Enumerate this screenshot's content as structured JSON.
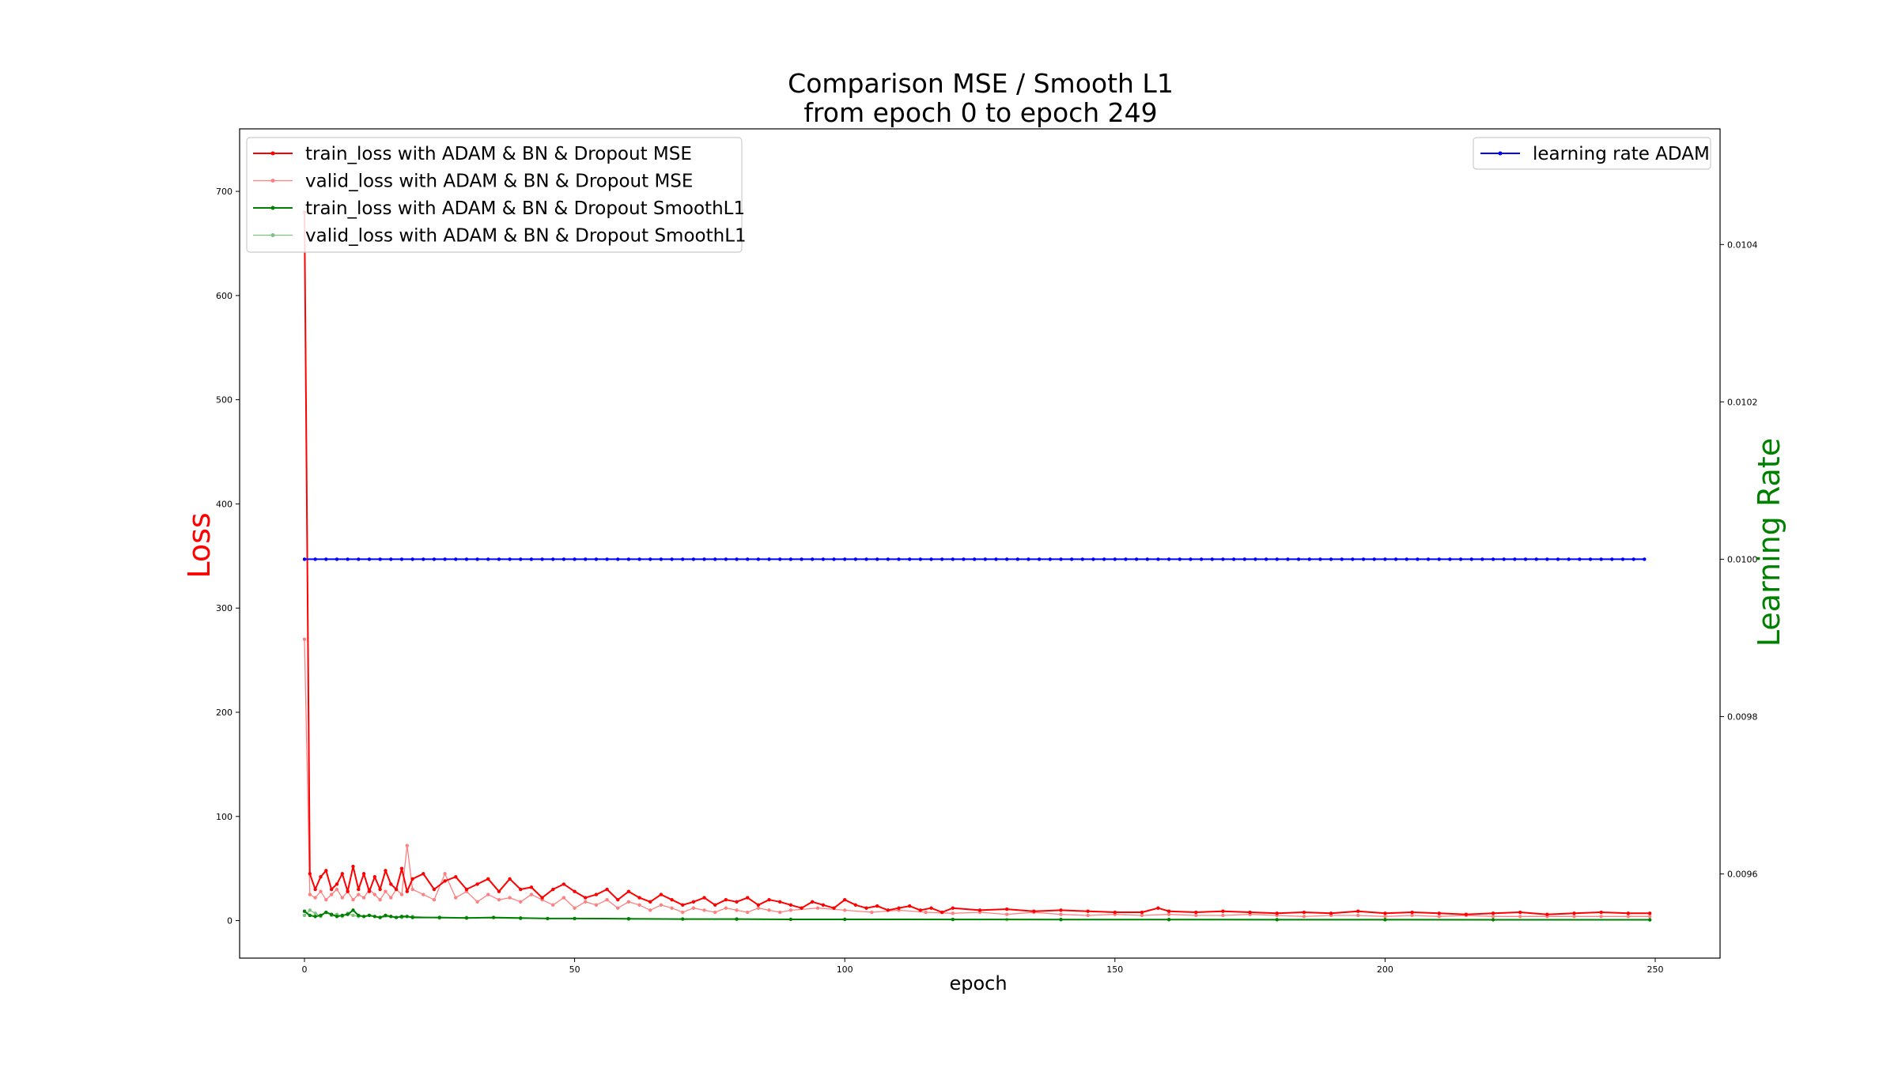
{
  "chart_data": {
    "type": "line",
    "title": "Comparison MSE / Smooth L1",
    "subtitle": "from epoch 0 to epoch 249",
    "xlabel": "epoch",
    "ylabel_left": "Loss",
    "ylabel_right": "Learning Rate",
    "colors": {
      "train_mse": "#ff0000",
      "valid_mse": "#ff8080",
      "train_sl1": "#008000",
      "valid_sl1": "#80c080",
      "lr": "#0000ff",
      "ylabel_left": "#ff0000",
      "ylabel_right": "#008000"
    },
    "xlim": [
      -12,
      262
    ],
    "ylim_left": [
      -36,
      760
    ],
    "ylim_right": [
      0.009493,
      0.010547
    ],
    "x_ticks": [
      "0",
      "50",
      "100",
      "150",
      "200",
      "250"
    ],
    "y_ticks_left": [
      "0",
      "100",
      "200",
      "300",
      "400",
      "500",
      "600",
      "700"
    ],
    "y_ticks_right": [
      "0.0096",
      "0.0098",
      "0.0100",
      "0.0102",
      "0.0104"
    ],
    "grid": false,
    "legend_left_position": "upper-left",
    "legend_right_position": "upper-right",
    "legend_left": [
      "train_loss with ADAM & BN & Dropout MSE",
      "valid_loss with ADAM & BN & Dropout MSE",
      "train_loss with ADAM & BN & Dropout SmoothL1",
      "valid_loss with ADAM & BN & Dropout SmoothL1"
    ],
    "legend_right": [
      "learning rate ADAM"
    ],
    "series": [
      {
        "name": "train_loss with ADAM & BN & Dropout MSE",
        "axis": "left",
        "color_key": "train_mse",
        "x": [
          0,
          1,
          2,
          3,
          4,
          5,
          6,
          7,
          8,
          9,
          10,
          11,
          12,
          13,
          14,
          15,
          16,
          17,
          18,
          19,
          20,
          22,
          24,
          26,
          28,
          30,
          32,
          34,
          36,
          38,
          40,
          42,
          44,
          46,
          48,
          50,
          52,
          54,
          56,
          58,
          60,
          62,
          64,
          66,
          68,
          70,
          72,
          74,
          76,
          78,
          80,
          82,
          84,
          86,
          88,
          90,
          92,
          94,
          96,
          98,
          100,
          102,
          104,
          106,
          108,
          110,
          112,
          114,
          116,
          118,
          120,
          125,
          130,
          135,
          140,
          145,
          150,
          155,
          158,
          160,
          165,
          170,
          175,
          180,
          185,
          190,
          195,
          200,
          205,
          210,
          215,
          220,
          225,
          230,
          235,
          240,
          245,
          249
        ],
        "values": [
          680,
          45,
          30,
          42,
          48,
          30,
          35,
          45,
          28,
          52,
          30,
          45,
          28,
          42,
          30,
          48,
          35,
          30,
          50,
          28,
          40,
          45,
          30,
          38,
          42,
          30,
          35,
          40,
          28,
          40,
          30,
          32,
          22,
          30,
          35,
          28,
          22,
          25,
          30,
          20,
          28,
          22,
          18,
          25,
          20,
          15,
          18,
          22,
          15,
          20,
          18,
          22,
          15,
          20,
          18,
          15,
          12,
          18,
          15,
          12,
          20,
          15,
          12,
          14,
          10,
          12,
          14,
          10,
          12,
          8,
          12,
          10,
          11,
          9,
          10,
          9,
          8,
          8,
          12,
          9,
          8,
          9,
          8,
          7,
          8,
          7,
          9,
          7,
          8,
          7,
          6,
          7,
          8,
          6,
          7,
          8,
          7,
          7
        ]
      },
      {
        "name": "valid_loss with ADAM & BN & Dropout MSE",
        "axis": "left",
        "color_key": "valid_mse",
        "x": [
          0,
          1,
          2,
          3,
          4,
          5,
          6,
          7,
          8,
          9,
          10,
          11,
          12,
          13,
          14,
          15,
          16,
          17,
          18,
          19,
          20,
          22,
          24,
          26,
          28,
          30,
          32,
          34,
          36,
          38,
          40,
          42,
          44,
          46,
          48,
          50,
          52,
          54,
          56,
          58,
          60,
          62,
          64,
          66,
          68,
          70,
          72,
          74,
          76,
          78,
          80,
          82,
          84,
          86,
          88,
          90,
          95,
          100,
          105,
          110,
          115,
          120,
          125,
          130,
          135,
          140,
          145,
          150,
          155,
          160,
          165,
          170,
          175,
          180,
          185,
          190,
          195,
          200,
          205,
          210,
          215,
          220,
          225,
          230,
          235,
          240,
          245,
          249
        ],
        "values": [
          270,
          25,
          22,
          28,
          20,
          25,
          30,
          22,
          28,
          20,
          25,
          22,
          30,
          25,
          20,
          28,
          22,
          30,
          25,
          72,
          30,
          25,
          20,
          45,
          22,
          28,
          18,
          25,
          20,
          22,
          18,
          25,
          20,
          15,
          22,
          12,
          18,
          15,
          20,
          12,
          18,
          15,
          10,
          15,
          12,
          8,
          12,
          10,
          8,
          12,
          10,
          8,
          12,
          10,
          8,
          10,
          12,
          10,
          8,
          10,
          8,
          7,
          8,
          6,
          8,
          6,
          5,
          6,
          5,
          6,
          5,
          5,
          6,
          5,
          4,
          5,
          5,
          4,
          5,
          4,
          5,
          4,
          4,
          4,
          4,
          4,
          4,
          4
        ]
      },
      {
        "name": "train_loss with ADAM & BN & Dropout SmoothL1",
        "axis": "left",
        "color_key": "train_sl1",
        "x": [
          0,
          1,
          2,
          3,
          4,
          5,
          6,
          7,
          8,
          9,
          10,
          11,
          12,
          13,
          14,
          15,
          16,
          17,
          18,
          19,
          20,
          25,
          30,
          35,
          40,
          45,
          50,
          60,
          70,
          80,
          90,
          100,
          120,
          140,
          160,
          180,
          200,
          220,
          249
        ],
        "values": [
          9,
          5,
          4,
          5,
          8,
          6,
          4,
          5,
          6,
          10,
          5,
          4,
          5,
          4,
          3,
          5,
          4,
          3,
          4,
          4,
          3,
          3,
          2.5,
          3,
          2.5,
          2,
          2,
          1.8,
          1.5,
          1.5,
          1.2,
          1.2,
          1.1,
          1,
          1,
          0.9,
          0.9,
          0.8,
          0.8
        ]
      },
      {
        "name": "valid_loss with ADAM & BN & Dropout SmoothL1",
        "axis": "left",
        "color_key": "valid_sl1",
        "x": [
          0,
          1,
          2,
          3,
          4,
          5,
          6,
          7,
          8,
          9,
          10,
          12,
          14,
          16,
          18,
          20,
          25,
          30,
          40,
          50,
          60,
          80,
          100,
          130,
          160,
          200,
          249
        ],
        "values": [
          5,
          10,
          7,
          4,
          8,
          5,
          6,
          4,
          7,
          5,
          4,
          5,
          3,
          4,
          3,
          4,
          2.5,
          3,
          2,
          2,
          1.5,
          1.3,
          1.2,
          1,
          0.9,
          0.8,
          0.7
        ]
      },
      {
        "name": "learning rate ADAM",
        "axis": "right",
        "color_key": "lr",
        "x": [
          0,
          249
        ],
        "values": [
          0.01,
          0.01
        ],
        "marker_every": 2
      }
    ]
  }
}
